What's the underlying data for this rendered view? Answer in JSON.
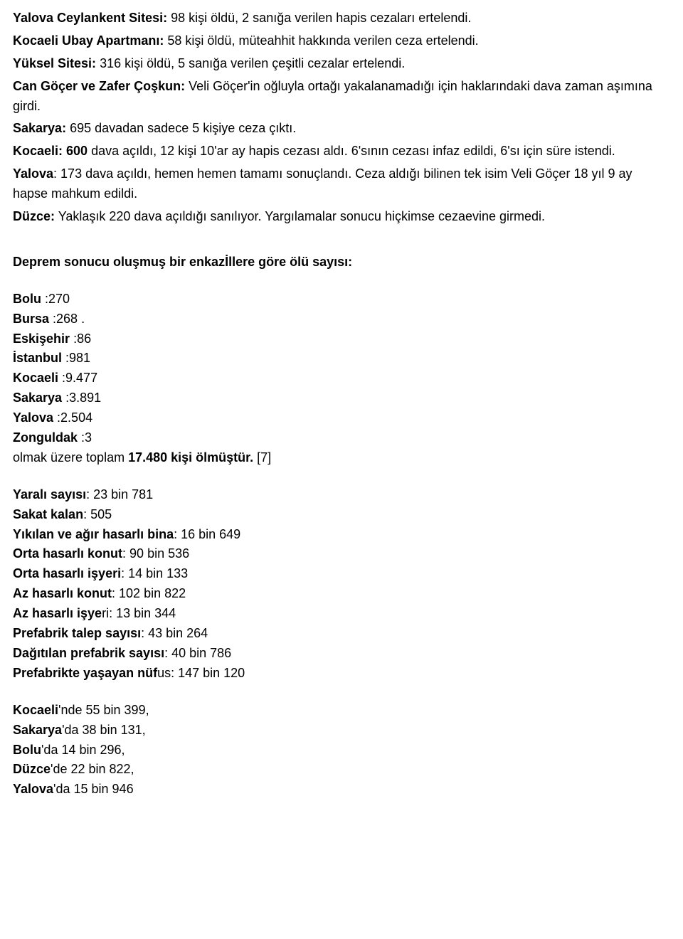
{
  "p1": {
    "bold": "Yalova Ceylankent Sitesi:",
    "text": " 98 kişi öldü, 2 sanığa verilen hapis cezaları ertelendi."
  },
  "p2": {
    "bold": "Kocaeli Ubay Apartmanı:",
    "text": " 58 kişi öldü, müteahhit hakkında verilen ceza ertelendi."
  },
  "p3": {
    "bold": "Yüksel Sitesi:",
    "text": " 316 kişi öldü, 5 sanığa verilen çeşitli cezalar ertelendi."
  },
  "p4": {
    "bold": "Can Göçer ve Zafer Çoşkun:",
    "text": " Veli Göçer'in oğluyla ortağı yakalanamadığı için haklarındaki dava zaman aşımına girdi."
  },
  "p5": {
    "bold": "Sakarya:",
    "text": " 695 davadan sadece 5 kişiye ceza çıktı."
  },
  "p6": {
    "bold": "Kocaeli: 600",
    "text": " dava açıldı, 12 kişi 10'ar ay hapis cezası aldı. 6'sının cezası infaz edildi, 6'sı için süre istendi."
  },
  "p7": {
    "bold": "Yalova",
    "text": ": 173 dava açıldı, hemen hemen tamamı sonuçlandı. Ceza aldığı bilinen tek isim Veli Göçer 18 yıl 9 ay hapse mahkum edildi."
  },
  "p8": {
    "bold": "Düzce:",
    "text": " Yaklaşık 220 dava açıldığı sanılıyor. Yargılamalar sonucu hiçkimse cezaevine girmedi."
  },
  "heading1": "Deprem sonucu oluşmuş bir enkazİllere göre ölü sayısı:",
  "cities": {
    "bolu": {
      "label": "Bolu",
      "value": " :270"
    },
    "bursa": {
      "label": "Bursa",
      "value": " :268 ."
    },
    "eskisehir": {
      "label": "Eskişehir",
      "value": " :86"
    },
    "istanbul": {
      "label": "İstanbul",
      "value": " :981"
    },
    "kocaeli": {
      "label": "Kocaeli",
      "value": " :9.477"
    },
    "sakarya": {
      "label": "Sakarya",
      "value": " :3.891"
    },
    "yalova": {
      "label": "Yalova",
      "value": " :2.504"
    },
    "zonguldak": {
      "label": "Zonguldak",
      "value": " :3"
    }
  },
  "total": {
    "prefix": "olmak üzere toplam ",
    "bold": "17.480 kişi ölmüştür.",
    "suffix": " [7]"
  },
  "stats": {
    "s1": {
      "bold": "Yaralı sayısı",
      "text": ": 23 bin 781"
    },
    "s2": {
      "bold": "Sakat kalan",
      "text": ": 505"
    },
    "s3": {
      "bold": "Yıkılan ve ağır hasarlı bina",
      "text": ": 16 bin 649"
    },
    "s4": {
      "bold": "Orta hasarlı konut",
      "text": ": 90 bin 536"
    },
    "s5": {
      "bold": "Orta hasarlı işyeri",
      "text": ": 14 bin 133"
    },
    "s6": {
      "bold": "Az hasarlı konut",
      "text": ": 102 bin 822"
    },
    "s7": {
      "bold": "Az hasarlı işye",
      "text": "ri: 13 bin 344"
    },
    "s8": {
      "bold": "Prefabrik talep sayısı",
      "text": ": 43 bin 264"
    },
    "s9": {
      "bold": "Dağıtılan prefabrik sayısı",
      "text": ": 40 bin 786"
    },
    "s10": {
      "bold": "Prefabrikte yaşayan nüf",
      "text": "us: 147 bin 120"
    }
  },
  "region": {
    "r1": {
      "bold": "Kocaeli",
      "text": "'nde 55 bin 399,"
    },
    "r2": {
      "bold": "Sakarya",
      "text": "'da 38 bin 131,"
    },
    "r3": {
      "bold": "Bolu",
      "text": "'da 14 bin 296,"
    },
    "r4": {
      "bold": "Düzce",
      "text": "'de 22 bin 822,"
    },
    "r5": {
      "bold": "Yalova",
      "text": "'da 15 bin 946"
    }
  }
}
